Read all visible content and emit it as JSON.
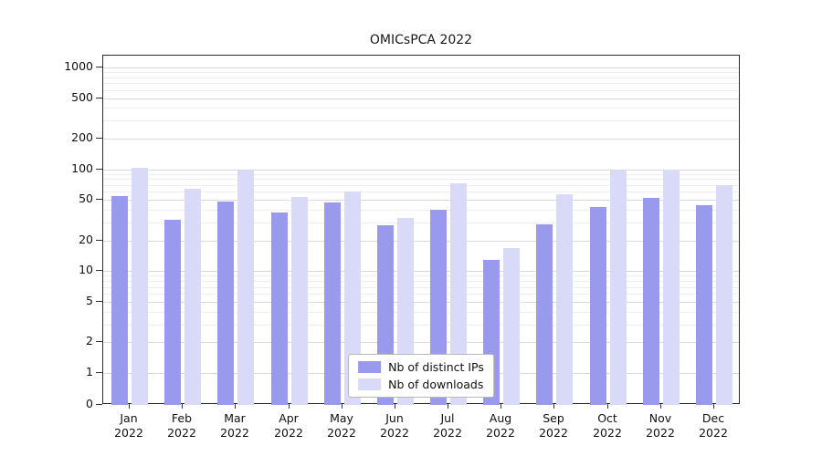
{
  "chart_data": {
    "type": "bar",
    "title": "OMICsPCA 2022",
    "scale": "symlog",
    "grid": true,
    "legend_position": "lower center",
    "ylim": [
      0,
      1000
    ],
    "y_ticks": [
      0,
      1,
      2,
      5,
      10,
      20,
      50,
      100,
      200,
      500,
      1000
    ],
    "y_minor_ticks": [
      3,
      4,
      6,
      7,
      8,
      9,
      30,
      40,
      60,
      70,
      80,
      90,
      300,
      400,
      600,
      700,
      800,
      900
    ],
    "categories": [
      "Jan 2022",
      "Feb 2022",
      "Mar 2022",
      "Apr 2022",
      "May 2022",
      "Jun 2022",
      "Jul 2022",
      "Aug 2022",
      "Sep 2022",
      "Oct 2022",
      "Nov 2022",
      "Dec 2022"
    ],
    "series": [
      {
        "name": "Nb of distinct IPs",
        "color": "#9999ee",
        "values": [
          55,
          32,
          48,
          38,
          47,
          28,
          40,
          13,
          29,
          43,
          52,
          44
        ]
      },
      {
        "name": "Nb of downloads",
        "color": "#d9d9f8",
        "values": [
          103,
          65,
          97,
          53,
          60,
          33,
          73,
          17,
          57,
          98,
          100,
          70
        ]
      }
    ]
  }
}
